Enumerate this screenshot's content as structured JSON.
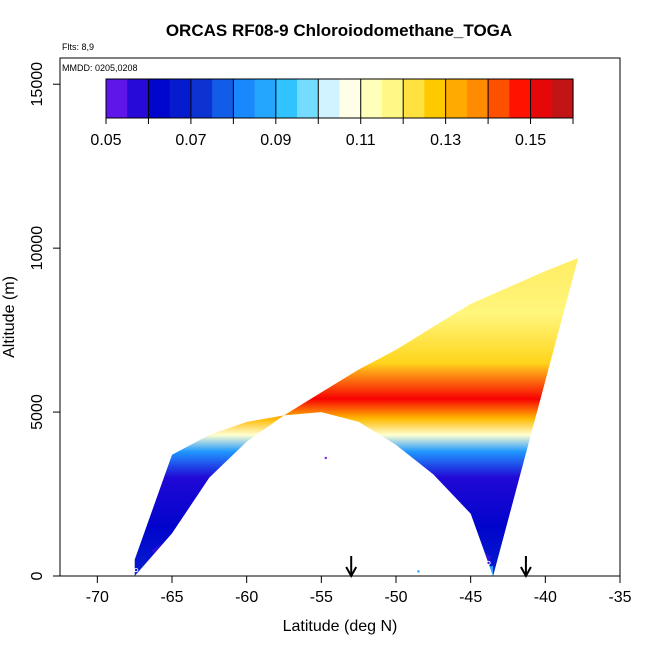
{
  "chart_data": {
    "type": "heatmap",
    "title": "ORCAS RF08-9 Chloroiodomethane_TOGA",
    "annotations": {
      "flights": "Flts: 8,9",
      "dates": "MMDD: 0205,0208"
    },
    "xlabel": "Latitude (deg N)",
    "ylabel": "Altitude (m)",
    "xlim": [
      -72.5,
      -35
    ],
    "ylim": [
      0,
      15800
    ],
    "xticks": [
      -70,
      -65,
      -60,
      -55,
      -50,
      -45,
      -40,
      -35
    ],
    "yticks": [
      0,
      5000,
      10000,
      15000
    ],
    "colorbar": {
      "min": 0.05,
      "max": 0.16,
      "tick_values": [
        0.05,
        0.07,
        0.09,
        0.11,
        0.13,
        0.15
      ],
      "tick_labels": [
        "0.05",
        "0.07",
        "0.09",
        "0.11",
        "0.13",
        "0.15"
      ],
      "stops": [
        "#7a1cf2",
        "#0000cc",
        "#0b2ecf",
        "#1a8cff",
        "#33ccff",
        "#ffffff",
        "#ffff99",
        "#ffcc00",
        "#ff8800",
        "#ff0000",
        "#b01a1a"
      ]
    },
    "curtain": {
      "boundary_lat": [
        -67.5,
        -65,
        -62.5,
        -60,
        -57.5,
        -55,
        -52.5,
        -50,
        -47.5,
        -45,
        -42.5,
        -40,
        -37.8,
        -43.5,
        -45,
        -47.5,
        -50,
        -52.5,
        -55,
        -57.5,
        -60,
        -62.5,
        -65,
        -67.5
      ],
      "boundary_alt": [
        0,
        1300,
        3000,
        4100,
        4900,
        5600,
        6300,
        6900,
        7600,
        8300,
        8800,
        9300,
        9700,
        0,
        1900,
        3100,
        4000,
        4700,
        5000,
        4900,
        4700,
        4300,
        3700,
        500
      ],
      "bottom_alt": 0,
      "band_levels": [
        {
          "alt": 0,
          "value": 0.068
        },
        {
          "alt": 1500,
          "value": 0.062
        },
        {
          "alt": 3000,
          "value": 0.058
        },
        {
          "alt": 3800,
          "value": 0.085
        },
        {
          "alt": 4300,
          "value": 0.11
        },
        {
          "alt": 4800,
          "value": 0.13
        },
        {
          "alt": 5400,
          "value": 0.15
        },
        {
          "alt": 6500,
          "value": 0.125
        },
        {
          "alt": 8000,
          "value": 0.118
        },
        {
          "alt": 9700,
          "value": 0.12
        }
      ]
    },
    "flight_markers": [
      {
        "lat": -53,
        "label": "down-arrow"
      },
      {
        "lat": -41.3,
        "label": "down-arrow"
      }
    ],
    "sample_points": [
      {
        "lat": -67.4,
        "alt": 180,
        "value": 0.06
      },
      {
        "lat": -54.7,
        "alt": 3600,
        "value": 0.05
      },
      {
        "lat": -48.5,
        "alt": 140,
        "value": 0.085
      },
      {
        "lat": -43.8,
        "alt": 400,
        "value": 0.055
      }
    ]
  }
}
